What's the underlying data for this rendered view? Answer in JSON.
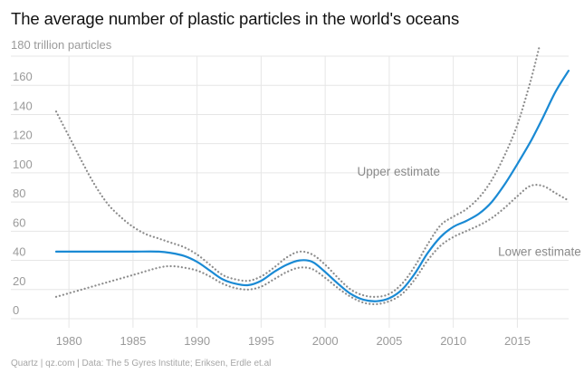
{
  "chart_data": {
    "type": "line",
    "title": "The average number of plastic particles in the world's oceans",
    "unit_label": "180 trillion particles",
    "xlim": [
      1979,
      2019
    ],
    "ylim": [
      0,
      180
    ],
    "x_ticks": [
      1980,
      1985,
      1990,
      1995,
      2000,
      2005,
      2010,
      2015
    ],
    "y_ticks": [
      0,
      20,
      40,
      60,
      80,
      100,
      120,
      140,
      160
    ],
    "grid": true,
    "series": [
      {
        "name": "",
        "style": "solid",
        "color": "#1a8ad4",
        "x": [
          1979,
          1981,
          1983,
          1985,
          1987,
          1988,
          1989,
          1990,
          1991,
          1992,
          1993,
          1994,
          1995,
          1996,
          1997,
          1998,
          1999,
          2000,
          2001,
          2002,
          2003,
          2004,
          2005,
          2006,
          2007,
          2008,
          2009,
          2010,
          2011,
          2012,
          2013,
          2014,
          2015,
          2016,
          2017,
          2018,
          2019
        ],
        "y": [
          46,
          46,
          46,
          46,
          46,
          45,
          43,
          39,
          33,
          27,
          24,
          23,
          26,
          32,
          37,
          40,
          39,
          32,
          24,
          17,
          13,
          12,
          14,
          20,
          31,
          45,
          56,
          63,
          67,
          72,
          80,
          92,
          106,
          121,
          138,
          156,
          170
        ]
      },
      {
        "name": "Upper estimate",
        "style": "dotted",
        "color": "#8c8c8c",
        "x": [
          1979,
          1980,
          1981,
          1982,
          1983,
          1984,
          1985,
          1986,
          1987,
          1988,
          1989,
          1990,
          1991,
          1992,
          1993,
          1994,
          1995,
          1996,
          1997,
          1998,
          1999,
          2000,
          2001,
          2002,
          2003,
          2004,
          2005,
          2006,
          2007,
          2008,
          2009,
          2010,
          2011,
          2012,
          2013,
          2014,
          2015,
          2016,
          2016.7
        ],
        "y": [
          142,
          125,
          108,
          92,
          79,
          70,
          63,
          58,
          55,
          52,
          49,
          44,
          37,
          30,
          27,
          26,
          29,
          35,
          42,
          46,
          44,
          37,
          28,
          20,
          16,
          15,
          17,
          24,
          36,
          51,
          64,
          70,
          75,
          83,
          95,
          112,
          133,
          162,
          186
        ]
      },
      {
        "name": "Lower estimate",
        "style": "dotted",
        "color": "#8c8c8c",
        "x": [
          1979,
          1981,
          1983,
          1985,
          1987,
          1988,
          1989,
          1990,
          1991,
          1992,
          1993,
          1994,
          1995,
          1996,
          1997,
          1998,
          1999,
          2000,
          2001,
          2002,
          2003,
          2004,
          2005,
          2006,
          2007,
          2008,
          2009,
          2010,
          2011,
          2012,
          2013,
          2014,
          2015,
          2016,
          2017,
          2018,
          2019
        ],
        "y": [
          15,
          20,
          25,
          30,
          35,
          36,
          35,
          33,
          29,
          24,
          21,
          20,
          22,
          27,
          32,
          35,
          34,
          28,
          21,
          15,
          11,
          10,
          12,
          17,
          27,
          40,
          50,
          56,
          60,
          64,
          69,
          76,
          84,
          91,
          91,
          86,
          81
        ]
      }
    ],
    "annotations": [
      {
        "text": "Upper estimate",
        "x": 2002.5,
        "y": 98
      },
      {
        "text": "Lower estimate",
        "x": 2013.5,
        "y": 43
      }
    ]
  },
  "footer": "Quartz | qz.com | Data: The 5 Gyres Institute; Eriksen, Erdle et.al"
}
